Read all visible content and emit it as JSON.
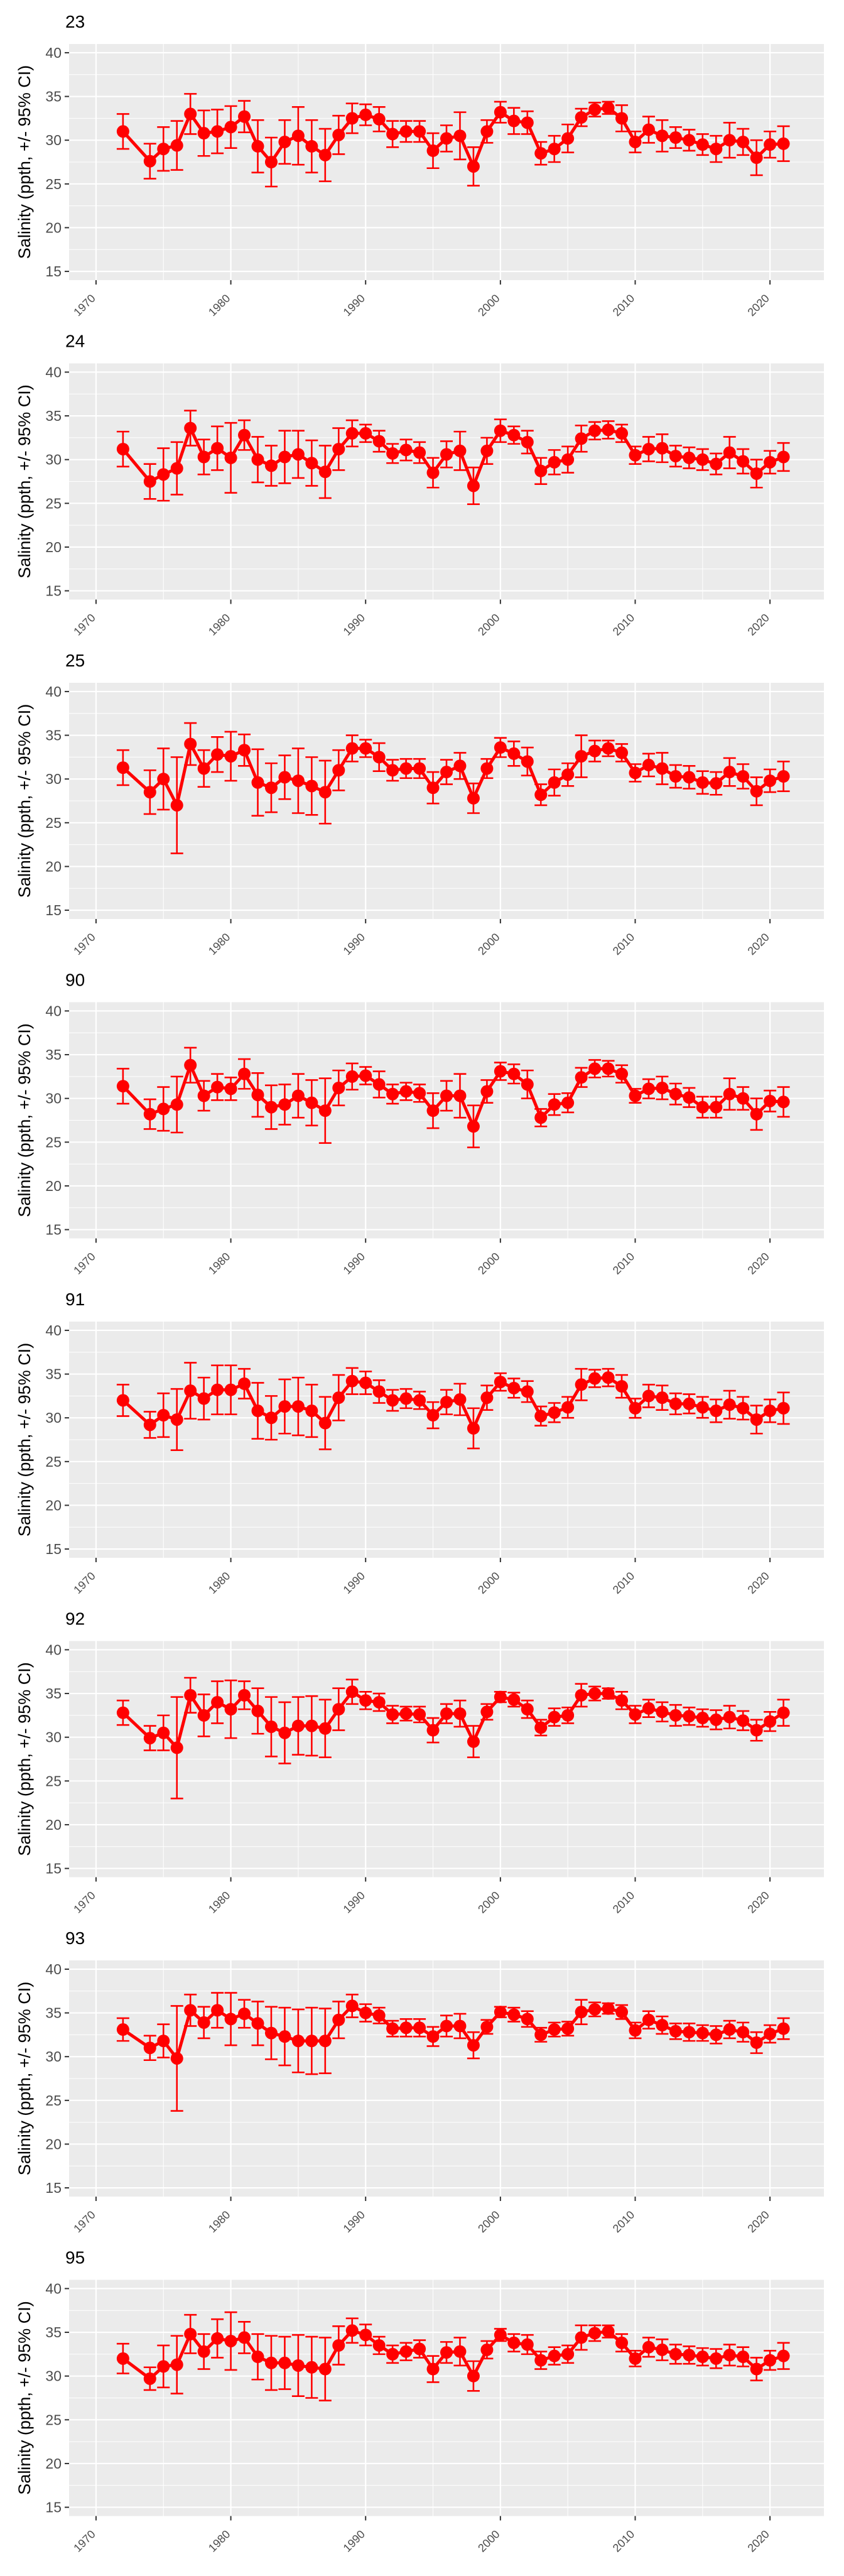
{
  "chart_data": {
    "type": "line",
    "ylabel": "Salinity (ppth, +/- 95% CI)",
    "ylim": [
      14,
      41
    ],
    "yticks": [
      15,
      20,
      25,
      30,
      35,
      40
    ],
    "xlim": [
      1968,
      2024
    ],
    "xticks": [
      1970,
      1980,
      1990,
      2000,
      2010,
      2020
    ],
    "grid": true,
    "colors": {
      "series": "#ff0000",
      "panel_bg": "#ebebeb",
      "grid": "#ffffff"
    },
    "panels": [
      {
        "title": "23",
        "x": [
          1972,
          1974,
          1975,
          1976,
          1977,
          1978,
          1979,
          1980,
          1981,
          1982,
          1983,
          1984,
          1985,
          1986,
          1987,
          1988,
          1989,
          1990,
          1991,
          1992,
          1993,
          1994,
          1995,
          1996,
          1997,
          1998,
          1999,
          2000,
          2001,
          2002,
          2003,
          2004,
          2005,
          2006,
          2007,
          2008,
          2009,
          2010,
          2011,
          2012,
          2013,
          2014,
          2015,
          2016,
          2017,
          2018,
          2019,
          2020,
          2021
        ],
        "y": [
          31,
          27.6,
          29,
          29.4,
          33,
          30.8,
          31,
          31.5,
          32.7,
          29.3,
          27.5,
          29.8,
          30.5,
          29.3,
          28.3,
          30.6,
          32.5,
          32.9,
          32.4,
          30.7,
          31,
          31,
          28.8,
          30.2,
          30.5,
          27,
          31,
          33.2,
          32.2,
          32,
          28.5,
          29,
          30.2,
          32.6,
          33.5,
          33.7,
          32.5,
          29.8,
          31.2,
          30.5,
          30.3,
          30,
          29.5,
          29,
          30,
          29.8,
          28,
          29.5,
          29.6
        ],
        "err": [
          2,
          2,
          2.5,
          2.8,
          2.3,
          2.6,
          2.5,
          2.4,
          1.8,
          3,
          2.8,
          2.5,
          3.3,
          3,
          3,
          2.2,
          1.7,
          1.2,
          1.4,
          1.5,
          1.2,
          1.2,
          2,
          1.5,
          2.7,
          2.2,
          1.3,
          1.2,
          1.5,
          1.3,
          1.3,
          1.5,
          1.6,
          1,
          0.8,
          0.7,
          1.5,
          1.2,
          1.5,
          1.8,
          1.2,
          1.2,
          1.2,
          1.5,
          2,
          1.5,
          2,
          1.5,
          2
        ]
      },
      {
        "title": "24",
        "x": [
          1972,
          1974,
          1975,
          1976,
          1977,
          1978,
          1979,
          1980,
          1981,
          1982,
          1983,
          1984,
          1985,
          1986,
          1987,
          1988,
          1989,
          1990,
          1991,
          1992,
          1993,
          1994,
          1995,
          1996,
          1997,
          1998,
          1999,
          2000,
          2001,
          2002,
          2003,
          2004,
          2005,
          2006,
          2007,
          2008,
          2009,
          2010,
          2011,
          2012,
          2013,
          2014,
          2015,
          2016,
          2017,
          2018,
          2019,
          2020,
          2021
        ],
        "y": [
          31.2,
          27.5,
          28.3,
          29,
          33.6,
          30.3,
          31.3,
          30.2,
          32.8,
          30,
          29.3,
          30.3,
          30.6,
          29.6,
          28.6,
          31.2,
          33,
          33,
          32.1,
          30.7,
          31.1,
          30.8,
          28.5,
          30.6,
          31,
          27,
          31,
          33.3,
          32.8,
          32,
          28.7,
          29.7,
          30,
          32.4,
          33.3,
          33.4,
          33,
          30.5,
          31.2,
          31.3,
          30.4,
          30.2,
          30,
          29.5,
          30.8,
          29.8,
          28.4,
          29.7,
          30.3
        ],
        "err": [
          2,
          2,
          3,
          3,
          2,
          2,
          2.5,
          4,
          1.7,
          2.6,
          2.3,
          3,
          2.7,
          2.6,
          3,
          2.4,
          1.5,
          1,
          1.2,
          1.1,
          1.2,
          1.2,
          1.7,
          1.5,
          2.2,
          2.1,
          1.5,
          1.3,
          1,
          1.3,
          1.5,
          1.4,
          1.5,
          1.5,
          1,
          1,
          1,
          1,
          1.4,
          1.6,
          1.2,
          1.2,
          1.2,
          1.2,
          1.8,
          1.4,
          1.6,
          1.3,
          1.6
        ]
      },
      {
        "title": "25",
        "x": [
          1972,
          1974,
          1975,
          1976,
          1977,
          1978,
          1979,
          1980,
          1981,
          1982,
          1983,
          1984,
          1985,
          1986,
          1987,
          1988,
          1989,
          1990,
          1991,
          1992,
          1993,
          1994,
          1995,
          1996,
          1997,
          1998,
          1999,
          2000,
          2001,
          2002,
          2003,
          2004,
          2005,
          2006,
          2007,
          2008,
          2009,
          2010,
          2011,
          2012,
          2013,
          2014,
          2015,
          2016,
          2017,
          2018,
          2019,
          2020,
          2021
        ],
        "y": [
          31.3,
          28.5,
          30,
          27,
          34,
          31.2,
          32.8,
          32.6,
          33.3,
          29.6,
          29,
          30.2,
          29.8,
          29.2,
          28.5,
          31,
          33.5,
          33.5,
          32.5,
          31,
          31.2,
          31.2,
          29,
          30.8,
          31.5,
          27.8,
          31.2,
          33.6,
          32.9,
          32,
          28.2,
          29.6,
          30.5,
          32.6,
          33.2,
          33.5,
          33,
          30.7,
          31.6,
          31.2,
          30.3,
          30.2,
          29.6,
          29.5,
          30.8,
          30.3,
          28.6,
          29.8,
          30.3
        ],
        "err": [
          2,
          2.5,
          3.5,
          5.5,
          2.4,
          2.1,
          2,
          2.8,
          1.8,
          3.8,
          2.8,
          2.5,
          3.7,
          3.3,
          3.6,
          2.3,
          1.5,
          1,
          1.6,
          1.2,
          1.1,
          1.1,
          1.8,
          1.4,
          1.5,
          1.7,
          1.1,
          1.1,
          1.4,
          1.6,
          1.2,
          1.5,
          1.3,
          2.4,
          1.2,
          0.9,
          1,
          1,
          1.3,
          1.8,
          1.3,
          1.3,
          1.3,
          1.3,
          1.6,
          1.4,
          1.6,
          1.3,
          1.7
        ]
      },
      {
        "title": "90",
        "x": [
          1972,
          1974,
          1975,
          1976,
          1977,
          1978,
          1979,
          1980,
          1981,
          1982,
          1983,
          1984,
          1985,
          1986,
          1987,
          1988,
          1989,
          1990,
          1991,
          1992,
          1993,
          1994,
          1995,
          1996,
          1997,
          1998,
          1999,
          2000,
          2001,
          2002,
          2003,
          2004,
          2005,
          2006,
          2007,
          2008,
          2009,
          2010,
          2011,
          2012,
          2013,
          2014,
          2015,
          2016,
          2017,
          2018,
          2019,
          2020,
          2021
        ],
        "y": [
          31.4,
          28.2,
          28.8,
          29.3,
          33.8,
          30.3,
          31.3,
          31.1,
          32.8,
          30.4,
          29,
          29.3,
          30.3,
          29.5,
          28.6,
          31.2,
          32.5,
          32.6,
          31.6,
          30.5,
          30.8,
          30.6,
          28.6,
          30.3,
          30.3,
          26.8,
          30.8,
          33.1,
          32.8,
          31.6,
          27.8,
          29.3,
          29.5,
          32.4,
          33.4,
          33.4,
          32.8,
          30.3,
          31.1,
          31.2,
          30.5,
          30.1,
          29,
          29,
          30.5,
          30,
          28.2,
          29.7,
          29.6
        ],
        "err": [
          2,
          1.7,
          2.5,
          3.2,
          2,
          1.7,
          1.5,
          1.3,
          1.7,
          2.5,
          2.5,
          2.3,
          2.5,
          2.6,
          3.7,
          2,
          1.5,
          1,
          1.5,
          1.1,
          1,
          1,
          2,
          1.7,
          2.5,
          2.4,
          1.3,
          1,
          1.1,
          1.6,
          1,
          1.2,
          1.1,
          1.1,
          1,
          0.9,
          1,
          0.8,
          1.1,
          1.3,
          1.2,
          1.1,
          1.2,
          1.2,
          1.8,
          1.3,
          1.8,
          1.2,
          1.7
        ]
      },
      {
        "title": "91",
        "x": [
          1972,
          1974,
          1975,
          1976,
          1977,
          1978,
          1979,
          1980,
          1981,
          1982,
          1983,
          1984,
          1985,
          1986,
          1987,
          1988,
          1989,
          1990,
          1991,
          1992,
          1993,
          1994,
          1995,
          1996,
          1997,
          1998,
          1999,
          2000,
          2001,
          2002,
          2003,
          2004,
          2005,
          2006,
          2007,
          2008,
          2009,
          2010,
          2011,
          2012,
          2013,
          2014,
          2015,
          2016,
          2017,
          2018,
          2019,
          2020,
          2021
        ],
        "y": [
          32,
          29.2,
          30.3,
          29.8,
          33.1,
          32.2,
          33.2,
          33.2,
          33.9,
          30.8,
          30,
          31.3,
          31.3,
          30.8,
          29.4,
          32.3,
          34.2,
          34,
          33,
          32,
          32.2,
          32,
          30.3,
          31.8,
          32.1,
          28.8,
          32.3,
          34.1,
          33.4,
          33,
          30.2,
          30.6,
          31.2,
          33.8,
          34.5,
          34.6,
          33.6,
          31.1,
          32.5,
          32.3,
          31.6,
          31.6,
          31.2,
          30.8,
          31.5,
          31.1,
          29.8,
          30.8,
          31.1
        ],
        "err": [
          1.8,
          1.5,
          2.5,
          3.5,
          3.2,
          2.4,
          2.8,
          2.8,
          1.7,
          3.2,
          2.5,
          3.1,
          3.3,
          3,
          3,
          2.6,
          1.5,
          1.3,
          1.3,
          1.2,
          1.1,
          1,
          1.5,
          1.4,
          1.8,
          2.3,
          1.4,
          1,
          1.1,
          1.2,
          1.1,
          1.1,
          1.2,
          1.8,
          1,
          1,
          1.3,
          1.1,
          1.3,
          1.4,
          1.2,
          1.1,
          1.2,
          1.3,
          1.6,
          1.3,
          1.6,
          1.3,
          1.8
        ]
      },
      {
        "title": "92",
        "x": [
          1972,
          1974,
          1975,
          1976,
          1977,
          1978,
          1979,
          1980,
          1981,
          1982,
          1983,
          1984,
          1985,
          1986,
          1987,
          1988,
          1989,
          1990,
          1991,
          1992,
          1993,
          1994,
          1995,
          1996,
          1997,
          1998,
          1999,
          2000,
          2001,
          2002,
          2003,
          2004,
          2005,
          2006,
          2007,
          2008,
          2009,
          2010,
          2011,
          2012,
          2013,
          2014,
          2015,
          2016,
          2017,
          2018,
          2019,
          2020,
          2021
        ],
        "y": [
          32.8,
          29.9,
          30.5,
          28.8,
          34.8,
          32.5,
          34,
          33.2,
          34.8,
          33,
          31.2,
          30.5,
          31.3,
          31.3,
          31,
          33.2,
          35.2,
          34.2,
          34,
          32.6,
          32.7,
          32.6,
          30.8,
          32.7,
          32.7,
          29.5,
          32.9,
          34.6,
          34.3,
          33.2,
          31.1,
          32.3,
          32.5,
          34.8,
          35,
          35,
          34.2,
          32.6,
          33.3,
          32.9,
          32.5,
          32.4,
          32.2,
          32,
          32.3,
          31.9,
          30.8,
          31.8,
          32.8
        ],
        "err": [
          1.4,
          1.4,
          2,
          5.8,
          2,
          2.4,
          2.4,
          3.3,
          1.6,
          2.6,
          3.4,
          3.5,
          3.3,
          3.4,
          3.3,
          2.4,
          1.4,
          1,
          1,
          1,
          0.8,
          0.9,
          1.4,
          1.1,
          1.5,
          1.8,
          0.9,
          0.6,
          0.8,
          1,
          0.9,
          1,
          0.9,
          1.3,
          0.8,
          0.6,
          1,
          1,
          1,
          1.1,
          1.2,
          1,
          1,
          1.1,
          1.3,
          1.1,
          1.2,
          1.1,
          1.5
        ]
      },
      {
        "title": "93",
        "x": [
          1972,
          1974,
          1975,
          1976,
          1977,
          1978,
          1979,
          1980,
          1981,
          1982,
          1983,
          1984,
          1985,
          1986,
          1987,
          1988,
          1989,
          1990,
          1991,
          1992,
          1993,
          1994,
          1995,
          1996,
          1997,
          1998,
          1999,
          2000,
          2001,
          2002,
          2003,
          2004,
          2005,
          2006,
          2007,
          2008,
          2009,
          2010,
          2011,
          2012,
          2013,
          2014,
          2015,
          2016,
          2017,
          2018,
          2019,
          2020,
          2021
        ],
        "y": [
          33.1,
          31,
          31.8,
          29.8,
          35.3,
          33.9,
          35.3,
          34.3,
          34.9,
          33.8,
          32.7,
          32.3,
          31.8,
          31.8,
          31.8,
          34.2,
          35.8,
          35,
          34.7,
          33.2,
          33.3,
          33.3,
          32.3,
          33.5,
          33.5,
          31.3,
          33.4,
          35.1,
          34.8,
          34.3,
          32.5,
          33.1,
          33.2,
          35.1,
          35.4,
          35.5,
          35.1,
          33,
          34.2,
          33.6,
          32.9,
          32.8,
          32.7,
          32.5,
          33.1,
          32.8,
          31.6,
          32.6,
          33.2
        ],
        "err": [
          1.3,
          1.4,
          1.9,
          6,
          1.8,
          1.8,
          2,
          3,
          1.6,
          2.5,
          3,
          3.3,
          3.6,
          3.8,
          3.7,
          2.1,
          1.3,
          1,
          0.9,
          0.9,
          1,
          1,
          1.1,
          1.2,
          1.4,
          1.5,
          0.8,
          0.6,
          0.8,
          0.9,
          0.8,
          0.8,
          0.8,
          1.4,
          0.8,
          0.6,
          0.8,
          0.9,
          1,
          1,
          0.9,
          1,
          0.9,
          1,
          1,
          1.1,
          1.2,
          1,
          1.2
        ]
      },
      {
        "title": "95",
        "x": [
          1972,
          1974,
          1975,
          1976,
          1977,
          1978,
          1979,
          1980,
          1981,
          1982,
          1983,
          1984,
          1985,
          1986,
          1987,
          1988,
          1989,
          1990,
          1991,
          1992,
          1993,
          1994,
          1995,
          1996,
          1997,
          1998,
          1999,
          2000,
          2001,
          2002,
          2003,
          2004,
          2005,
          2006,
          2007,
          2008,
          2009,
          2010,
          2011,
          2012,
          2013,
          2014,
          2015,
          2016,
          2017,
          2018,
          2019,
          2020,
          2021
        ],
        "y": [
          32,
          29.7,
          31.1,
          31.3,
          34.8,
          32.8,
          34.3,
          34,
          34.4,
          32.2,
          31.5,
          31.5,
          31.2,
          31,
          30.8,
          33.5,
          35.2,
          34.7,
          33.5,
          32.5,
          32.8,
          33.1,
          30.8,
          32.7,
          32.8,
          30,
          33,
          34.7,
          33.8,
          33.6,
          31.8,
          32.3,
          32.5,
          34.4,
          34.9,
          35.1,
          33.8,
          32,
          33.3,
          33,
          32.5,
          32.4,
          32.2,
          32,
          32.4,
          32.2,
          30.8,
          31.8,
          32.3
        ],
        "err": [
          1.7,
          1.3,
          2.4,
          3.3,
          2.2,
          2,
          2.2,
          3.3,
          1.8,
          2.6,
          3.1,
          3,
          3.5,
          3.5,
          3.6,
          2.2,
          1.4,
          1.2,
          1,
          1,
          1,
          1,
          1.5,
          1.2,
          1.6,
          1.7,
          1,
          0.7,
          1,
          1.1,
          1,
          1,
          1,
          1.4,
          0.9,
          0.7,
          1,
          0.9,
          1.1,
          1.2,
          1.1,
          1,
          1,
          1.1,
          1.2,
          1.1,
          1.3,
          1.1,
          1.5
        ]
      }
    ]
  }
}
